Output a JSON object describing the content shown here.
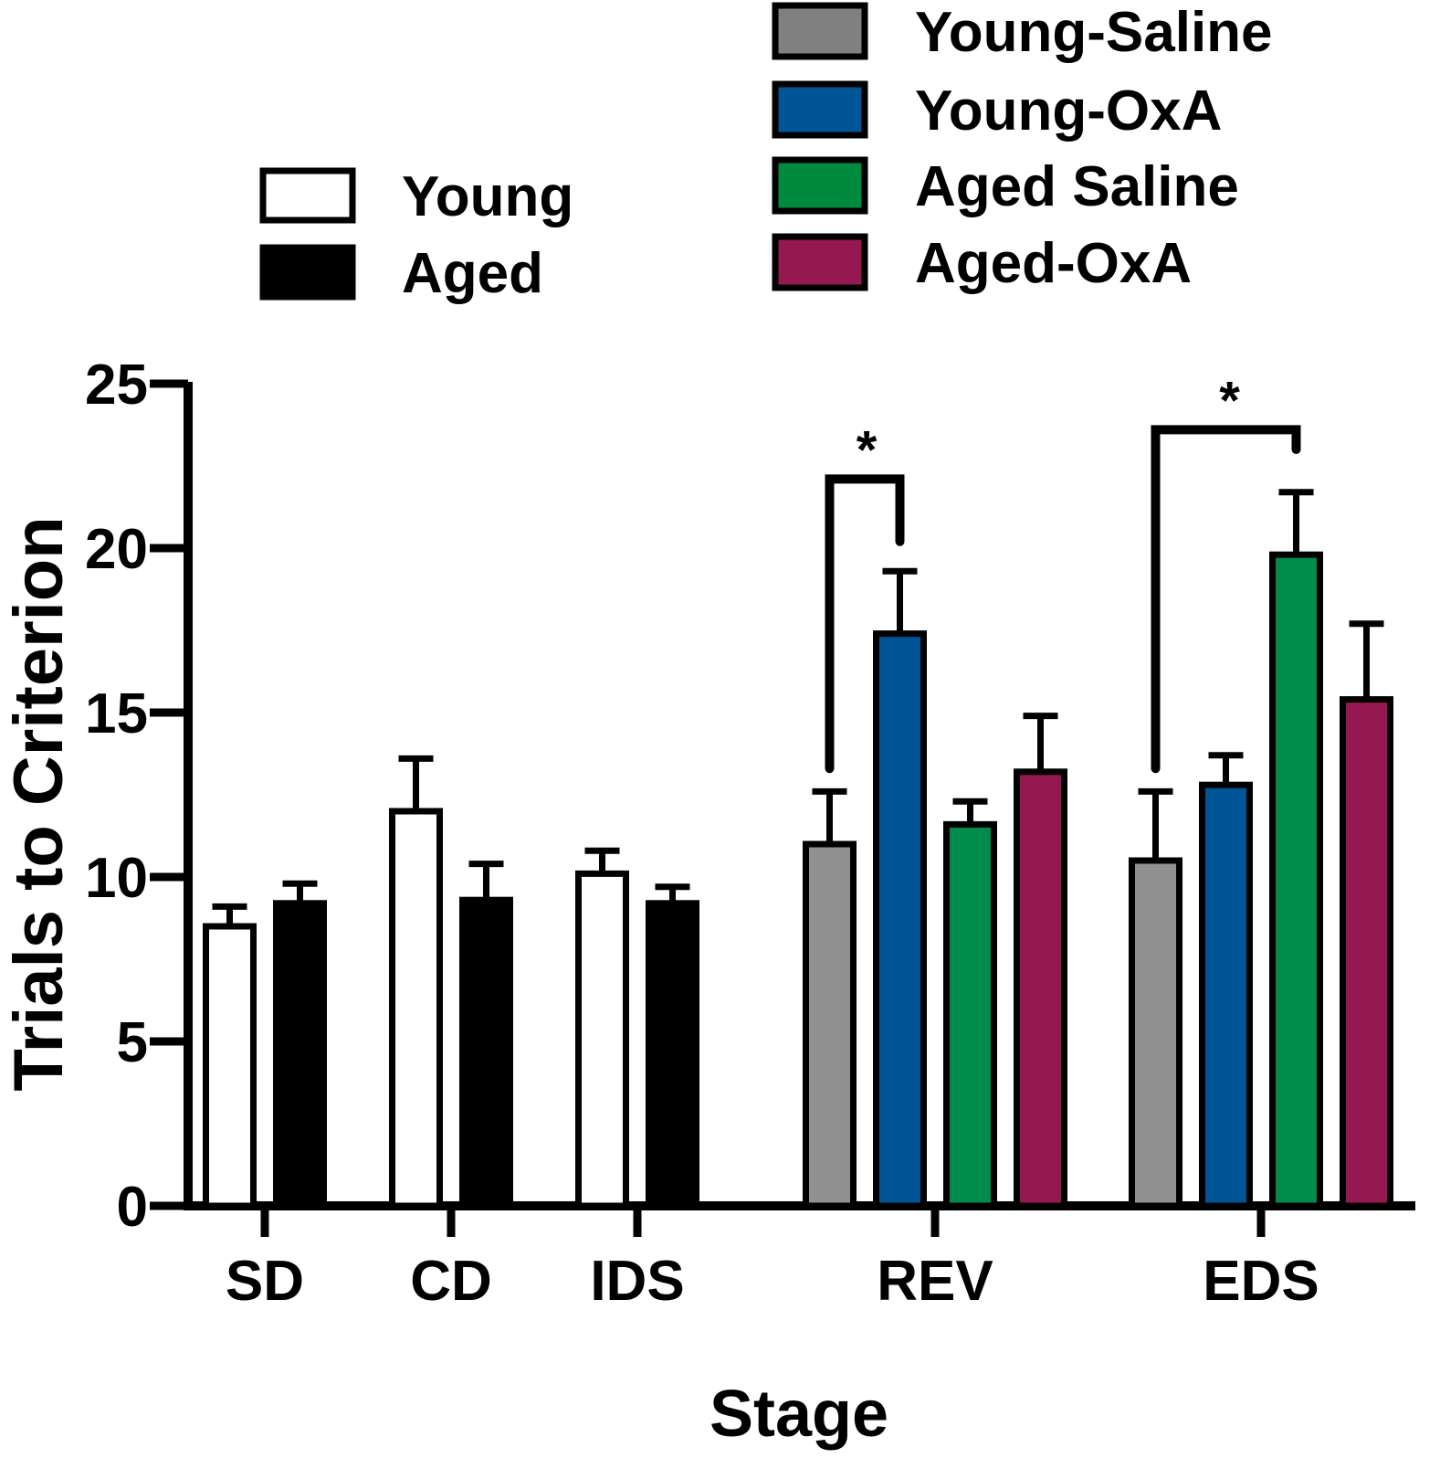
{
  "chart_data": {
    "type": "bar",
    "ylabel": "Trials to Criterion",
    "xlabel": "Stage",
    "ylim": [
      0,
      25
    ],
    "yticks": [
      "0",
      "5",
      "10",
      "15",
      "20",
      "25"
    ],
    "legends": [
      {
        "entries": [
          {
            "label": "Young",
            "color": "#ffffff"
          },
          {
            "label": "Aged",
            "color": "#000000"
          }
        ]
      },
      {
        "entries": [
          {
            "label": "Young-Saline",
            "color": "#808080"
          },
          {
            "label": "Young-OxA",
            "color": "#005596"
          },
          {
            "label": "Aged Saline",
            "color": "#008a3e"
          },
          {
            "label": "Aged-OxA",
            "color": "#961850"
          }
        ]
      }
    ],
    "groups": [
      {
        "stage": "SD",
        "bars": [
          {
            "series": "Young",
            "value": 8.5,
            "error": 0.6,
            "color": "#ffffff"
          },
          {
            "series": "Aged",
            "value": 9.2,
            "error": 0.6,
            "color": "#000000"
          }
        ]
      },
      {
        "stage": "CD",
        "bars": [
          {
            "series": "Young",
            "value": 12.0,
            "error": 1.6,
            "color": "#ffffff"
          },
          {
            "series": "Aged",
            "value": 9.3,
            "error": 1.1,
            "color": "#000000"
          }
        ]
      },
      {
        "stage": "IDS",
        "bars": [
          {
            "series": "Young",
            "value": 10.1,
            "error": 0.7,
            "color": "#ffffff"
          },
          {
            "series": "Aged",
            "value": 9.2,
            "error": 0.5,
            "color": "#000000"
          }
        ]
      },
      {
        "stage": "REV",
        "bars": [
          {
            "series": "Young-Saline",
            "value": 11.0,
            "error": 1.6,
            "color": "#909090"
          },
          {
            "series": "Young-OxA",
            "value": 17.4,
            "error": 1.9,
            "color": "#005596"
          },
          {
            "series": "Aged Saline",
            "value": 11.6,
            "error": 0.7,
            "color": "#008a4c"
          },
          {
            "series": "Aged-OxA",
            "value": 13.2,
            "error": 1.7,
            "color": "#961850"
          }
        ]
      },
      {
        "stage": "EDS",
        "bars": [
          {
            "series": "Young-Saline",
            "value": 10.5,
            "error": 2.1,
            "color": "#909090"
          },
          {
            "series": "Young-OxA",
            "value": 12.8,
            "error": 0.9,
            "color": "#005596"
          },
          {
            "series": "Aged Saline",
            "value": 19.8,
            "error": 1.9,
            "color": "#008a4c"
          },
          {
            "series": "Aged-OxA",
            "value": 15.4,
            "error": 2.3,
            "color": "#961850"
          }
        ]
      }
    ],
    "annotations": [
      {
        "text": "*",
        "stage": "REV",
        "from_bar": 0,
        "to_bar": 1,
        "level": 22.1,
        "drop_left": 13.3,
        "drop_right": 20.2
      },
      {
        "text": "*",
        "stage": "EDS",
        "from_bar": 0,
        "to_bar": 2,
        "level": 23.6,
        "drop_left": 13.3,
        "drop_right": 23.0
      }
    ]
  }
}
